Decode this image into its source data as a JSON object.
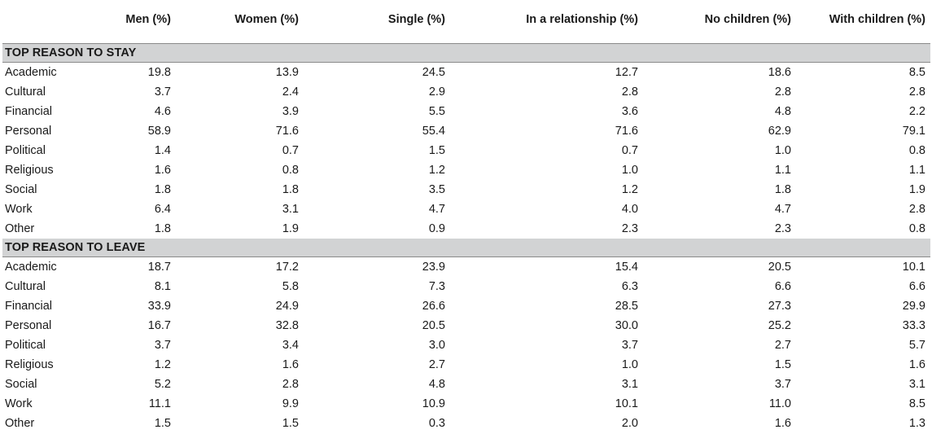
{
  "table": {
    "headers": [
      "",
      "Men (%)",
      "Women (%)",
      "Single (%)",
      "In a relationship (%)",
      "No children (%)",
      "With children (%)"
    ],
    "sections": [
      {
        "title": "TOP REASON TO STAY",
        "rows": [
          {
            "label": "Academic",
            "values": [
              "19.8",
              "13.9",
              "24.5",
              "12.7",
              "18.6",
              "8.5"
            ]
          },
          {
            "label": "Cultural",
            "values": [
              "3.7",
              "2.4",
              "2.9",
              "2.8",
              "2.8",
              "2.8"
            ]
          },
          {
            "label": "Financial",
            "values": [
              "4.6",
              "3.9",
              "5.5",
              "3.6",
              "4.8",
              "2.2"
            ]
          },
          {
            "label": "Personal",
            "values": [
              "58.9",
              "71.6",
              "55.4",
              "71.6",
              "62.9",
              "79.1"
            ]
          },
          {
            "label": "Political",
            "values": [
              "1.4",
              "0.7",
              "1.5",
              "0.7",
              "1.0",
              "0.8"
            ]
          },
          {
            "label": "Religious",
            "values": [
              "1.6",
              "0.8",
              "1.2",
              "1.0",
              "1.1",
              "1.1"
            ]
          },
          {
            "label": "Social",
            "values": [
              "1.8",
              "1.8",
              "3.5",
              "1.2",
              "1.8",
              "1.9"
            ]
          },
          {
            "label": "Work",
            "values": [
              "6.4",
              "3.1",
              "4.7",
              "4.0",
              "4.7",
              "2.8"
            ]
          },
          {
            "label": "Other",
            "values": [
              "1.8",
              "1.9",
              "0.9",
              "2.3",
              "2.3",
              "0.8"
            ]
          }
        ]
      },
      {
        "title": "TOP REASON TO LEAVE",
        "rows": [
          {
            "label": "Academic",
            "values": [
              "18.7",
              "17.2",
              "23.9",
              "15.4",
              "20.5",
              "10.1"
            ]
          },
          {
            "label": "Cultural",
            "values": [
              "8.1",
              "5.8",
              "7.3",
              "6.3",
              "6.6",
              "6.6"
            ]
          },
          {
            "label": "Financial",
            "values": [
              "33.9",
              "24.9",
              "26.6",
              "28.5",
              "27.3",
              "29.9"
            ]
          },
          {
            "label": "Personal",
            "values": [
              "16.7",
              "32.8",
              "20.5",
              "30.0",
              "25.2",
              "33.3"
            ]
          },
          {
            "label": "Political",
            "values": [
              "3.7",
              "3.4",
              "3.0",
              "3.7",
              "2.7",
              "5.7"
            ]
          },
          {
            "label": "Religious",
            "values": [
              "1.2",
              "1.6",
              "2.7",
              "1.0",
              "1.5",
              "1.6"
            ]
          },
          {
            "label": "Social",
            "values": [
              "5.2",
              "2.8",
              "4.8",
              "3.1",
              "3.7",
              "3.1"
            ]
          },
          {
            "label": "Work",
            "values": [
              "11.1",
              "9.9",
              "10.9",
              "10.1",
              "11.0",
              "8.5"
            ]
          },
          {
            "label": "Other",
            "values": [
              "1.5",
              "1.5",
              "0.3",
              "2.0",
              "1.6",
              "1.3"
            ]
          }
        ]
      }
    ]
  }
}
